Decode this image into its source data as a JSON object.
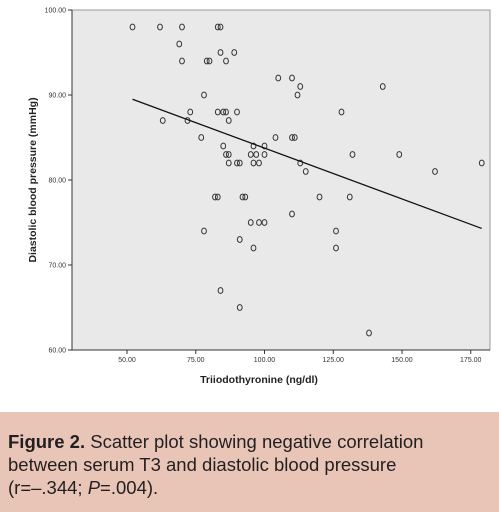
{
  "chart_data": {
    "type": "scatter",
    "title": "",
    "xlabel": "Triiodothyronine (ng/dl)",
    "ylabel": "Diastolic blood pressure (mmHg)",
    "xlim": [
      30,
      182
    ],
    "ylim": [
      60,
      100
    ],
    "x_ticks": [
      50,
      75,
      100,
      125,
      150,
      175
    ],
    "y_ticks": [
      60,
      70,
      80,
      90,
      100
    ],
    "x_tick_labels": [
      "50.00",
      "75.00",
      "100.00",
      "125.00",
      "150.00",
      "175.00"
    ],
    "y_tick_labels": [
      "60.00",
      "70.00",
      "80.00",
      "90.00",
      "100.00"
    ],
    "grid": false,
    "background": "#e9e9e9",
    "point_color": "#333333",
    "trend_line": {
      "x": [
        52,
        179
      ],
      "y": [
        89.5,
        74.3
      ]
    },
    "points": [
      [
        52,
        98
      ],
      [
        62,
        98
      ],
      [
        70,
        98
      ],
      [
        83,
        98
      ],
      [
        84,
        98
      ],
      [
        69,
        96
      ],
      [
        70,
        94
      ],
      [
        79,
        94
      ],
      [
        80,
        94
      ],
      [
        84,
        95
      ],
      [
        89,
        95
      ],
      [
        86,
        94
      ],
      [
        105,
        92
      ],
      [
        110,
        92
      ],
      [
        143,
        91
      ],
      [
        113,
        91
      ],
      [
        112,
        90
      ],
      [
        78,
        90
      ],
      [
        128,
        88
      ],
      [
        73,
        88
      ],
      [
        83,
        88
      ],
      [
        85,
        88
      ],
      [
        86,
        88
      ],
      [
        90,
        88
      ],
      [
        87,
        87
      ],
      [
        63,
        87
      ],
      [
        72,
        87
      ],
      [
        77,
        85
      ],
      [
        104,
        85
      ],
      [
        110,
        85
      ],
      [
        111,
        85
      ],
      [
        85,
        84
      ],
      [
        96,
        84
      ],
      [
        100,
        84
      ],
      [
        86,
        83
      ],
      [
        87,
        83
      ],
      [
        95,
        83
      ],
      [
        100,
        83
      ],
      [
        97,
        83
      ],
      [
        132,
        83
      ],
      [
        149,
        83
      ],
      [
        87,
        82
      ],
      [
        90,
        82
      ],
      [
        91,
        82
      ],
      [
        96,
        82
      ],
      [
        98,
        82
      ],
      [
        113,
        82
      ],
      [
        179,
        82
      ],
      [
        115,
        81
      ],
      [
        162,
        81
      ],
      [
        82,
        78
      ],
      [
        83,
        78
      ],
      [
        92,
        78
      ],
      [
        93,
        78
      ],
      [
        120,
        78
      ],
      [
        131,
        78
      ],
      [
        110,
        76
      ],
      [
        95,
        75
      ],
      [
        98,
        75
      ],
      [
        100,
        75
      ],
      [
        78,
        74
      ],
      [
        126,
        74
      ],
      [
        91,
        73
      ],
      [
        96,
        72
      ],
      [
        126,
        72
      ],
      [
        84,
        67
      ],
      [
        91,
        65
      ],
      [
        138,
        62
      ]
    ]
  },
  "caption": {
    "label": "Figure 2.",
    "line1": " Scatter plot showing negative correlation",
    "line2": "between serum T3 and diastolic blood pressure",
    "line3_a": " (r=–.344; ",
    "line3_p": "P",
    "line3_b": "=.004)."
  }
}
